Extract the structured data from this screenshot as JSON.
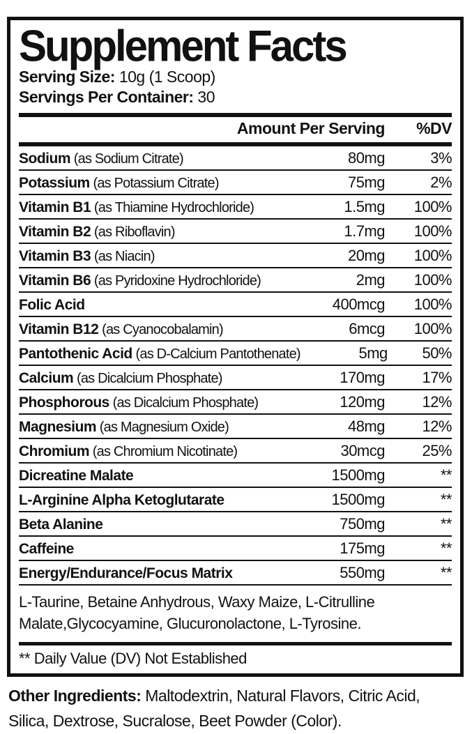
{
  "title": "Supplement Facts",
  "serving": {
    "size_label": "Serving Size:",
    "size_value": "10g (1 Scoop)",
    "container_label": "Servings Per Container:",
    "container_value": "30"
  },
  "table": {
    "amount_header": "Amount Per Serving",
    "dv_header": "%DV",
    "rows": [
      {
        "name": "Sodium",
        "detail": "(as Sodium Citrate)",
        "amount": "80mg",
        "dv": "3%"
      },
      {
        "name": "Potassium",
        "detail": "(as Potassium Citrate)",
        "amount": "75mg",
        "dv": "2%"
      },
      {
        "name": "Vitamin B1",
        "detail": "(as Thiamine Hydrochloride)",
        "amount": "1.5mg",
        "dv": "100%"
      },
      {
        "name": "Vitamin B2",
        "detail": "(as Riboflavin)",
        "amount": "1.7mg",
        "dv": "100%"
      },
      {
        "name": "Vitamin B3",
        "detail": "(as Niacin)",
        "amount": "20mg",
        "dv": "100%"
      },
      {
        "name": "Vitamin B6",
        "detail": "(as Pyridoxine Hydrochloride)",
        "amount": "2mg",
        "dv": "100%"
      },
      {
        "name": "Folic Acid",
        "detail": "",
        "amount": "400mcg",
        "dv": "100%"
      },
      {
        "name": "Vitamin B12",
        "detail": "(as Cyanocobalamin)",
        "amount": "6mcg",
        "dv": "100%"
      },
      {
        "name": "Pantothenic Acid",
        "detail": "(as D-Calcium Pantothenate)",
        "amount": "5mg",
        "dv": "50%"
      },
      {
        "name": "Calcium",
        "detail": "(as Dicalcium Phosphate)",
        "amount": "170mg",
        "dv": "17%"
      },
      {
        "name": "Phosphorous",
        "detail": "(as Dicalcium Phosphate)",
        "amount": "120mg",
        "dv": "12%"
      },
      {
        "name": "Magnesium",
        "detail": "(as Magnesium Oxide)",
        "amount": "48mg",
        "dv": "12%"
      },
      {
        "name": "Chromium",
        "detail": "(as Chromium Nicotinate)",
        "amount": "30mcg",
        "dv": "25%"
      },
      {
        "name": "Dicreatine Malate",
        "detail": "",
        "amount": "1500mg",
        "dv": "**"
      },
      {
        "name": "L-Arginine Alpha Ketoglutarate",
        "detail": "",
        "amount": "1500mg",
        "dv": "**"
      },
      {
        "name": "Beta Alanine",
        "detail": "",
        "amount": "750mg",
        "dv": "**"
      },
      {
        "name": "Caffeine",
        "detail": "",
        "amount": "175mg",
        "dv": "**"
      },
      {
        "name": "Energy/Endurance/Focus Matrix",
        "detail": "",
        "amount": "550mg",
        "dv": "**"
      }
    ]
  },
  "matrix_note": "L-Taurine, Betaine Anhydrous, Waxy Maize,  L-Citrulline Malate,Glycocyamine, Glucuronolactone, L-Tyrosine.",
  "footnote": "** Daily Value (DV) Not Established",
  "other_ingredients": {
    "label": "Other Ingredients:",
    "value": " Maltodextrin, Natural Flavors, Citric Acid, Silica, Dextrose, Sucralose, Beet Powder (Color)."
  },
  "colors": {
    "text": "#111111",
    "background": "#ffffff",
    "border": "#111111"
  }
}
